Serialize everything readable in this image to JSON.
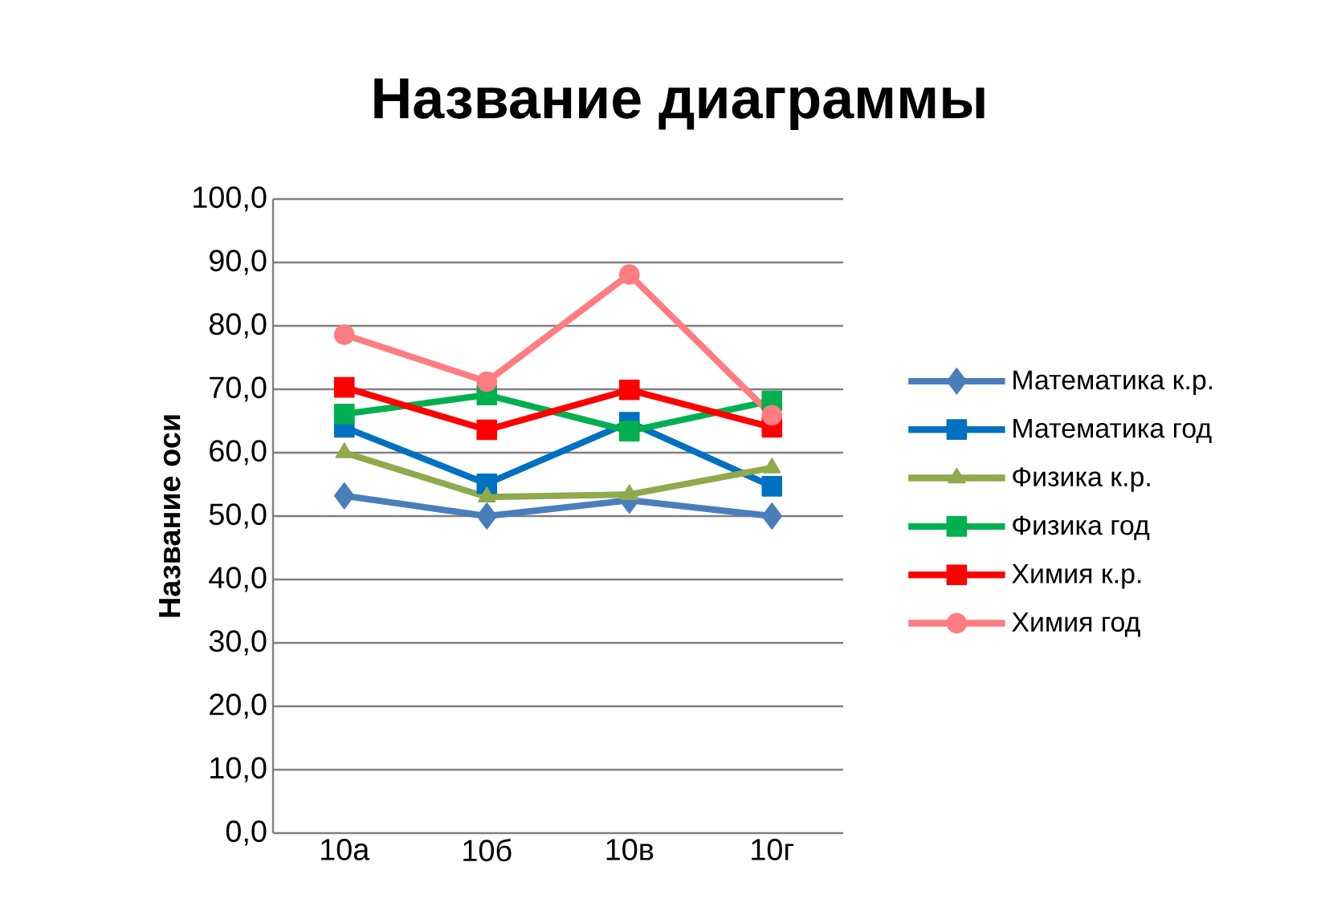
{
  "chart_data": {
    "type": "line",
    "title": "Название диаграммы",
    "ylabel": "Название оси",
    "categories": [
      "10а",
      "10б",
      "10в",
      "10г"
    ],
    "ylim": [
      0,
      100
    ],
    "yticks": [
      {
        "value": 0,
        "label": "0,0"
      },
      {
        "value": 10,
        "label": "10,0"
      },
      {
        "value": 20,
        "label": "20,0"
      },
      {
        "value": 30,
        "label": "30,0"
      },
      {
        "value": 40,
        "label": "40,0"
      },
      {
        "value": 50,
        "label": "50,0"
      },
      {
        "value": 60,
        "label": "60,0"
      },
      {
        "value": 70,
        "label": "70,0"
      },
      {
        "value": 80,
        "label": "80,0"
      },
      {
        "value": 90,
        "label": "90,0"
      },
      {
        "value": 100,
        "label": "100,0"
      }
    ],
    "grid": "y",
    "legend": "right",
    "series": [
      {
        "name": "Математика к.р.",
        "color": "#4a7ebb",
        "marker": "diamond",
        "values": [
          53.2,
          50,
          52.5,
          50
        ]
      },
      {
        "name": "Математика год",
        "color": "#0070c0",
        "marker": "square",
        "values": [
          64,
          55.1,
          64.8,
          54.7
        ]
      },
      {
        "name": "Физика к.р.",
        "color": "#8faa4c",
        "marker": "triangle",
        "values": [
          60,
          53,
          53.4,
          57.6
        ]
      },
      {
        "name": "Физика год",
        "color": "#00b050",
        "marker": "square",
        "values": [
          66.1,
          69.1,
          63.4,
          68.2
        ]
      },
      {
        "name": "Химия к.р.",
        "color": "#ff0000",
        "marker": "square",
        "values": [
          70.3,
          63.6,
          69.9,
          64
        ]
      },
      {
        "name": "Химия год",
        "color": "#ff7c80",
        "marker": "circle",
        "values": [
          78.6,
          71.2,
          88.1,
          65.9
        ]
      }
    ]
  }
}
